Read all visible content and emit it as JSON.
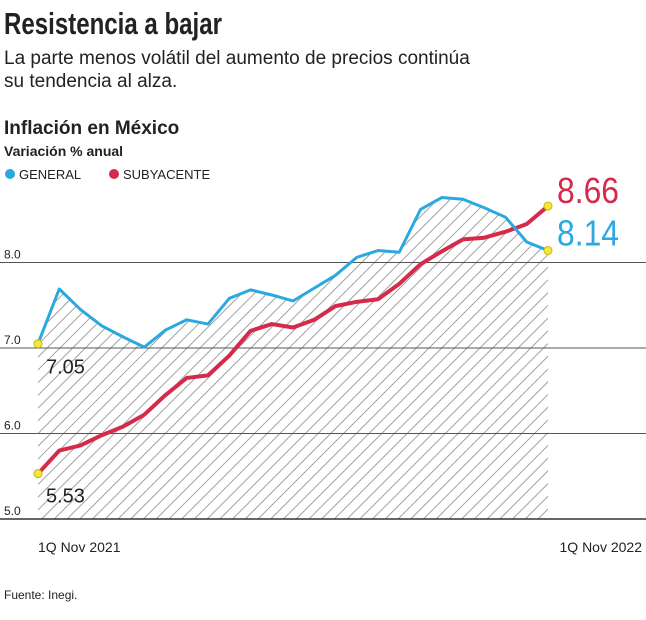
{
  "chart_data": {
    "type": "line",
    "title": "Resistencia a bajar",
    "subtitle": [
      "La parte menos volátil del aumento de precios continúa",
      "su tendencia al alza."
    ],
    "chart_title": "Inflación en México",
    "y_label": "Variación % anual",
    "source": "Fuente: Inegi.",
    "categories": [
      "1Q Nov 2021",
      null,
      null,
      null,
      null,
      null,
      null,
      null,
      null,
      null,
      null,
      null,
      null,
      null,
      null,
      null,
      null,
      null,
      null,
      null,
      null,
      null,
      null,
      null,
      "1Q Nov 2022"
    ],
    "series": [
      {
        "name": "GENERAL",
        "color": "#2aa9e0",
        "values": [
          7.05,
          7.69,
          7.45,
          7.26,
          7.13,
          7.01,
          7.21,
          7.33,
          7.28,
          7.58,
          7.68,
          7.62,
          7.55,
          7.7,
          7.85,
          8.06,
          8.14,
          8.12,
          8.62,
          8.76,
          8.74,
          8.64,
          8.53,
          8.24,
          8.14
        ]
      },
      {
        "name": "SUBYACENTE",
        "color": "#d62a4b",
        "values": [
          5.53,
          5.8,
          5.86,
          5.98,
          6.08,
          6.22,
          6.45,
          6.65,
          6.68,
          6.91,
          7.2,
          7.28,
          7.24,
          7.33,
          7.49,
          7.54,
          7.57,
          7.75,
          7.98,
          8.13,
          8.27,
          8.29,
          8.36,
          8.45,
          8.66
        ]
      }
    ],
    "ylim": [
      5,
      9
    ],
    "yticks": [
      {
        "value": 5,
        "label": "5.0"
      },
      {
        "value": 6,
        "label": "6.0"
      },
      {
        "value": 7,
        "label": "7.0"
      },
      {
        "value": 8,
        "label": "8.0"
      }
    ],
    "grid": true
  }
}
